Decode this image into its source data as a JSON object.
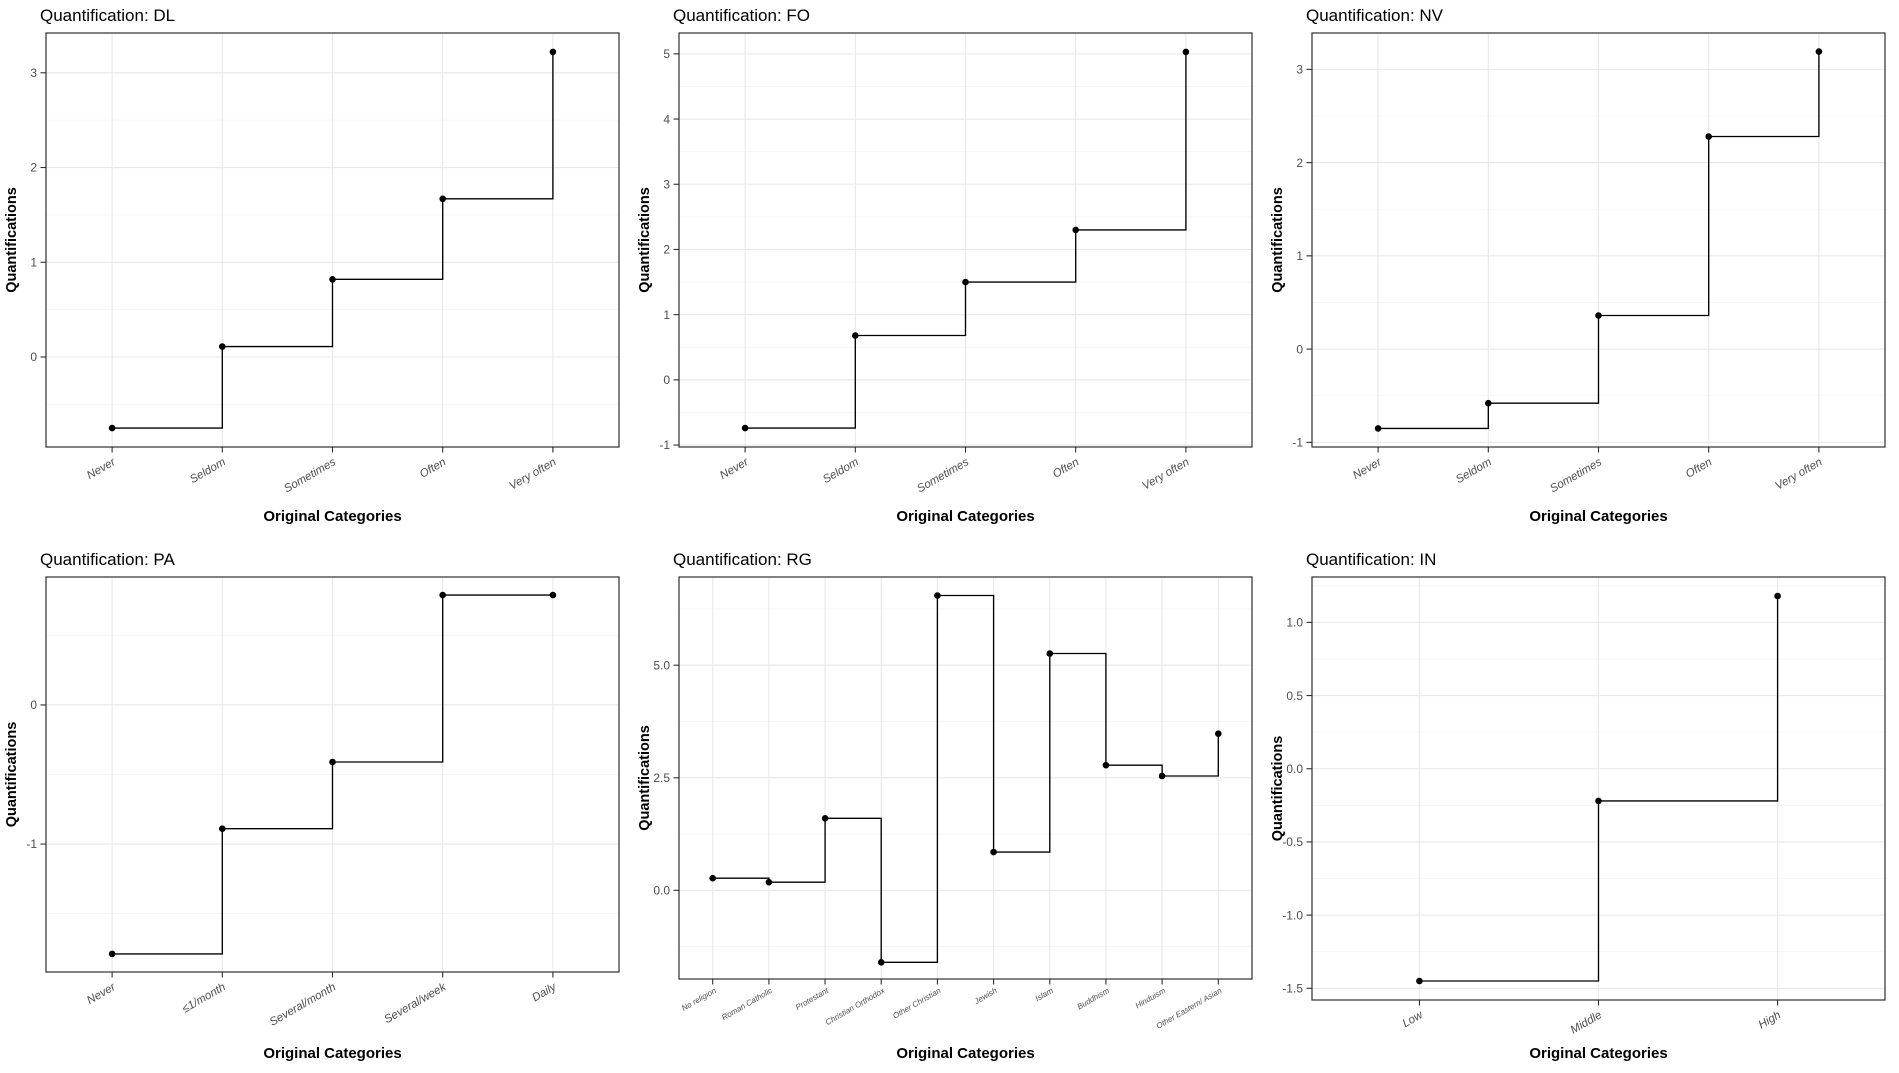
{
  "style": {
    "background_color": "#ffffff",
    "panel_background": "#ffffff",
    "panel_border_color": "#2e2e2e",
    "grid_major_color": "#e8e8e8",
    "grid_minor_color": "#f4f4f4",
    "tick_mark_color": "#2e2e2e",
    "tick_label_color": "#4d4d4d",
    "title_color": "#000000",
    "axis_title_color": "#000000",
    "line_color": "#000000",
    "point_color": "#000000"
  },
  "chart_data": [
    {
      "id": "dl",
      "type": "line",
      "step": "hv",
      "title": "Quantification: DL",
      "xlabel": "Original Categories",
      "ylabel": "Quantifications",
      "categories": [
        "Never",
        "Seldom",
        "Sometimes",
        "Often",
        "Very often"
      ],
      "values": [
        -0.75,
        0.11,
        0.82,
        1.67,
        3.22
      ],
      "yticks": [
        0,
        1,
        2,
        3
      ],
      "ytick_labels": [
        "0",
        "1",
        "2",
        "3"
      ],
      "ylim": [
        -0.95,
        3.42
      ],
      "grid": "on",
      "legend": "none"
    },
    {
      "id": "fo",
      "type": "line",
      "step": "hv",
      "title": "Quantification: FO",
      "xlabel": "Original Categories",
      "ylabel": "Quantifications",
      "categories": [
        "Never",
        "Seldom",
        "Sometimes",
        "Often",
        "Very often"
      ],
      "values": [
        -0.74,
        0.68,
        1.5,
        2.3,
        5.03
      ],
      "yticks": [
        -1,
        0,
        1,
        2,
        3,
        4,
        5
      ],
      "ytick_labels": [
        "-1",
        "0",
        "1",
        "2",
        "3",
        "4",
        "5"
      ],
      "ylim": [
        -1.03,
        5.32
      ],
      "grid": "on",
      "legend": "none"
    },
    {
      "id": "nv",
      "type": "line",
      "step": "hv",
      "title": "Quantification: NV",
      "xlabel": "Original Categories",
      "ylabel": "Quantifications",
      "categories": [
        "Never",
        "Seldom",
        "Sometimes",
        "Often",
        "Very often"
      ],
      "values": [
        -0.85,
        -0.58,
        0.36,
        2.28,
        3.19
      ],
      "yticks": [
        -1,
        0,
        1,
        2,
        3
      ],
      "ytick_labels": [
        "-1",
        "0",
        "1",
        "2",
        "3"
      ],
      "ylim": [
        -1.05,
        3.39
      ],
      "grid": "on",
      "legend": "none"
    },
    {
      "id": "pa",
      "type": "line",
      "step": "hv",
      "title": "Quantification: PA",
      "xlabel": "Original Categories",
      "ylabel": "Quantifications",
      "categories": [
        "Never",
        "≤1/month",
        "Several/month",
        "Several/week",
        "Daily"
      ],
      "values": [
        -1.79,
        -0.89,
        -0.41,
        0.79,
        0.79
      ],
      "yticks": [
        -1,
        0
      ],
      "ytick_labels": [
        "-1",
        "0"
      ],
      "ylim": [
        -1.92,
        0.92
      ],
      "grid": "on",
      "legend": "none"
    },
    {
      "id": "rg",
      "type": "line",
      "step": "hv",
      "title": "Quantification: RG",
      "xlabel": "Original Categories",
      "ylabel": "Quantifications",
      "categories": [
        "No religion",
        "Roman Catholic",
        "Protestant",
        "Christian Orthodox",
        "Other Christian",
        "Jewish",
        "Islam",
        "Buddhism",
        "Hinduism",
        "Other Eastern/ Asian"
      ],
      "values": [
        0.27,
        0.18,
        1.6,
        -1.6,
        6.55,
        0.85,
        5.26,
        2.78,
        2.54,
        3.48
      ],
      "yticks": [
        0,
        2.5,
        5
      ],
      "ytick_labels": [
        "0.0",
        "2.5",
        "5.0"
      ],
      "ylim": [
        -1.97,
        6.96
      ],
      "grid": "on",
      "legend": "none"
    },
    {
      "id": "in",
      "type": "line",
      "step": "hv",
      "title": "Quantification: IN",
      "xlabel": "Original Categories",
      "ylabel": "Quantifications",
      "categories": [
        "Low",
        "Middle",
        "High"
      ],
      "values": [
        -1.45,
        -0.22,
        1.18
      ],
      "yticks": [
        -1.5,
        -1,
        -0.5,
        0,
        0.5,
        1
      ],
      "ytick_labels": [
        "-1.5",
        "-1.0",
        "-0.5",
        "0.0",
        "0.5",
        "1.0"
      ],
      "ylim": [
        -1.58,
        1.31
      ],
      "grid": "on",
      "legend": "none"
    }
  ]
}
